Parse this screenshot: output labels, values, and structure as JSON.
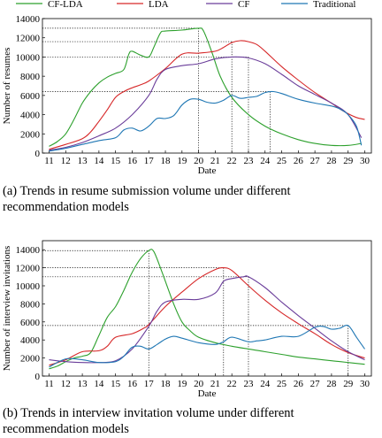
{
  "legend": {
    "entries": [
      {
        "name": "CF-LDA",
        "color": "#2ca02c"
      },
      {
        "name": "LDA",
        "color": "#d62728"
      },
      {
        "name": "CF",
        "color": "#6a3d9a"
      },
      {
        "name": "Traditional",
        "color": "#1f77b4"
      }
    ]
  },
  "captions": {
    "a": "(a) Trends in resume submission volume under different recommendation models",
    "b": "(b) Trends in interview invitation volume under different recommendation models"
  },
  "chart_data": [
    {
      "type": "line",
      "title": "",
      "xlabel": "Date",
      "ylabel": "Number of resumes",
      "xlim": [
        10.6,
        30.4
      ],
      "ylim": [
        0,
        14000
      ],
      "xticks": [
        11,
        12,
        13,
        14,
        15,
        16,
        17,
        18,
        19,
        20,
        21,
        22,
        23,
        24,
        25,
        26,
        27,
        28,
        29,
        30
      ],
      "yticks": [
        0,
        2000,
        4000,
        6000,
        8000,
        10000,
        12000,
        14000
      ],
      "grid": false,
      "legend": "top",
      "series": [
        {
          "name": "CF-LDA",
          "color": "#2ca02c",
          "points": [
            [
              11,
              700
            ],
            [
              11.5,
              1200
            ],
            [
              12,
              2000
            ],
            [
              12.5,
              3500
            ],
            [
              13,
              5200
            ],
            [
              13.5,
              6400
            ],
            [
              14,
              7300
            ],
            [
              14.5,
              7900
            ],
            [
              15,
              8300
            ],
            [
              15.5,
              8700
            ],
            [
              15.8,
              10300
            ],
            [
              16,
              10600
            ],
            [
              16.5,
              10200
            ],
            [
              17,
              10000
            ],
            [
              17.3,
              11000
            ],
            [
              17.7,
              12500
            ],
            [
              18,
              12700
            ],
            [
              19,
              12800
            ],
            [
              20,
              13000
            ],
            [
              20.3,
              12700
            ],
            [
              20.8,
              10500
            ],
            [
              21.3,
              8000
            ],
            [
              22,
              5800
            ],
            [
              23,
              4000
            ],
            [
              24,
              2800
            ],
            [
              25,
              2000
            ],
            [
              26,
              1400
            ],
            [
              27,
              1000
            ],
            [
              28,
              800
            ],
            [
              29,
              800
            ],
            [
              29.8,
              1000
            ]
          ]
        },
        {
          "name": "LDA",
          "color": "#d62728",
          "points": [
            [
              11,
              400
            ],
            [
              12,
              900
            ],
            [
              13,
              1500
            ],
            [
              13.5,
              2200
            ],
            [
              14,
              3300
            ],
            [
              14.5,
              4500
            ],
            [
              15,
              5800
            ],
            [
              15.5,
              6400
            ],
            [
              16,
              6800
            ],
            [
              16.5,
              7100
            ],
            [
              17,
              7500
            ],
            [
              18,
              8800
            ],
            [
              19,
              10300
            ],
            [
              20,
              10400
            ],
            [
              21,
              10600
            ],
            [
              21.5,
              11000
            ],
            [
              22,
              11500
            ],
            [
              22.5,
              11700
            ],
            [
              23,
              11600
            ],
            [
              23.5,
              11300
            ],
            [
              24,
              10600
            ],
            [
              25,
              9000
            ],
            [
              26,
              7600
            ],
            [
              27,
              6300
            ],
            [
              28,
              5200
            ],
            [
              28.5,
              4600
            ],
            [
              29,
              4100
            ],
            [
              29.5,
              3700
            ],
            [
              30,
              3500
            ]
          ]
        },
        {
          "name": "CF",
          "color": "#6a3d9a",
          "points": [
            [
              11,
              300
            ],
            [
              12,
              600
            ],
            [
              13,
              1100
            ],
            [
              14,
              1800
            ],
            [
              15,
              2600
            ],
            [
              16,
              4000
            ],
            [
              17,
              6000
            ],
            [
              17.5,
              7700
            ],
            [
              18,
              8700
            ],
            [
              19,
              9100
            ],
            [
              20,
              9300
            ],
            [
              21,
              9800
            ],
            [
              22,
              10000
            ],
            [
              23,
              9900
            ],
            [
              24,
              9300
            ],
            [
              25,
              8200
            ],
            [
              26,
              7000
            ],
            [
              27,
              6100
            ],
            [
              28,
              5200
            ],
            [
              29,
              4000
            ],
            [
              29.8,
              1600
            ]
          ]
        },
        {
          "name": "Traditional",
          "color": "#1f77b4",
          "points": [
            [
              11,
              200
            ],
            [
              12,
              500
            ],
            [
              13,
              900
            ],
            [
              14,
              1300
            ],
            [
              15,
              1600
            ],
            [
              15.5,
              2400
            ],
            [
              16,
              2600
            ],
            [
              16.5,
              2300
            ],
            [
              17,
              2800
            ],
            [
              17.5,
              3600
            ],
            [
              18,
              3600
            ],
            [
              18.5,
              3900
            ],
            [
              19,
              5000
            ],
            [
              19.5,
              5600
            ],
            [
              20,
              5600
            ],
            [
              20.5,
              5300
            ],
            [
              21,
              5200
            ],
            [
              21.5,
              5500
            ],
            [
              22,
              6000
            ],
            [
              22.5,
              5700
            ],
            [
              23,
              5800
            ],
            [
              23.5,
              5900
            ],
            [
              24,
              6300
            ],
            [
              24.5,
              6400
            ],
            [
              25,
              6200
            ],
            [
              26,
              5600
            ],
            [
              27,
              5200
            ],
            [
              28,
              4900
            ],
            [
              28.5,
              4600
            ],
            [
              29,
              4000
            ],
            [
              29.5,
              2800
            ],
            [
              29.8,
              800
            ]
          ]
        }
      ],
      "reference_lines": {
        "horizontal": [
          13000,
          11600,
          10000,
          6400
        ],
        "vertical": [
          20,
          22,
          23,
          24.3
        ]
      }
    },
    {
      "type": "line",
      "title": "",
      "xlabel": "Date",
      "ylabel": "Number of interview invitations",
      "xlim": [
        10.6,
        30.4
      ],
      "ylim": [
        0,
        15000
      ],
      "xticks": [
        11,
        12,
        13,
        14,
        15,
        16,
        17,
        18,
        19,
        20,
        21,
        22,
        23,
        24,
        25,
        26,
        27,
        28,
        29,
        30
      ],
      "yticks": [
        0,
        2000,
        4000,
        6000,
        8000,
        10000,
        12000,
        14000
      ],
      "grid": false,
      "legend": "none",
      "series": [
        {
          "name": "CF-LDA",
          "color": "#2ca02c",
          "points": [
            [
              11,
              800
            ],
            [
              11.5,
              1100
            ],
            [
              12,
              1600
            ],
            [
              12.5,
              2000
            ],
            [
              13,
              2200
            ],
            [
              13.5,
              2600
            ],
            [
              14,
              4500
            ],
            [
              14.5,
              6500
            ],
            [
              15,
              7700
            ],
            [
              15.5,
              9500
            ],
            [
              16,
              11500
            ],
            [
              16.5,
              13000
            ],
            [
              17,
              13900
            ],
            [
              17.3,
              13800
            ],
            [
              17.8,
              11500
            ],
            [
              18.5,
              8000
            ],
            [
              19,
              6000
            ],
            [
              19.5,
              5000
            ],
            [
              20,
              4300
            ],
            [
              21,
              3700
            ],
            [
              22,
              3300
            ],
            [
              23,
              3000
            ],
            [
              24,
              2700
            ],
            [
              25,
              2400
            ],
            [
              26,
              2100
            ],
            [
              27,
              1900
            ],
            [
              28,
              1700
            ],
            [
              29,
              1500
            ],
            [
              30,
              1300
            ]
          ]
        },
        {
          "name": "LDA",
          "color": "#d62728",
          "points": [
            [
              11,
              1200
            ],
            [
              12,
              1800
            ],
            [
              13,
              2700
            ],
            [
              14,
              2800
            ],
            [
              14.5,
              3300
            ],
            [
              15,
              4300
            ],
            [
              16,
              4700
            ],
            [
              16.7,
              5300
            ],
            [
              17,
              5700
            ],
            [
              18,
              7700
            ],
            [
              19,
              9300
            ],
            [
              20,
              10800
            ],
            [
              21,
              11800
            ],
            [
              21.5,
              12000
            ],
            [
              22,
              11700
            ],
            [
              23,
              10000
            ],
            [
              24,
              8400
            ],
            [
              25,
              7000
            ],
            [
              26,
              5800
            ],
            [
              27,
              4700
            ],
            [
              28,
              3500
            ],
            [
              29,
              2600
            ],
            [
              30,
              2000
            ]
          ]
        },
        {
          "name": "CF",
          "color": "#6a3d9a",
          "points": [
            [
              11,
              1800
            ],
            [
              12,
              1600
            ],
            [
              13,
              1500
            ],
            [
              14,
              1500
            ],
            [
              15,
              1700
            ],
            [
              16,
              3000
            ],
            [
              17,
              5500
            ],
            [
              17.5,
              7200
            ],
            [
              18,
              8200
            ],
            [
              19,
              8500
            ],
            [
              20,
              8500
            ],
            [
              21,
              9200
            ],
            [
              21.5,
              10500
            ],
            [
              22,
              10800
            ],
            [
              22.7,
              11000
            ],
            [
              23,
              11000
            ],
            [
              24,
              9800
            ],
            [
              25,
              8200
            ],
            [
              26,
              6700
            ],
            [
              27,
              5300
            ],
            [
              28,
              3900
            ],
            [
              29,
              2700
            ],
            [
              30,
              1800
            ]
          ]
        },
        {
          "name": "Traditional",
          "color": "#1f77b4",
          "points": [
            [
              11,
              1000
            ],
            [
              12,
              1900
            ],
            [
              13,
              1800
            ],
            [
              14,
              1500
            ],
            [
              15,
              1600
            ],
            [
              15.5,
              2200
            ],
            [
              16,
              3200
            ],
            [
              16.5,
              3300
            ],
            [
              17,
              3000
            ],
            [
              17.5,
              3500
            ],
            [
              18,
              4100
            ],
            [
              18.5,
              4400
            ],
            [
              19,
              4200
            ],
            [
              20,
              3700
            ],
            [
              21,
              3500
            ],
            [
              21.5,
              3800
            ],
            [
              22,
              4300
            ],
            [
              23,
              3800
            ],
            [
              23.5,
              3900
            ],
            [
              24,
              4000
            ],
            [
              25,
              4400
            ],
            [
              26,
              4400
            ],
            [
              27,
              5400
            ],
            [
              27.5,
              5500
            ],
            [
              28,
              5200
            ],
            [
              28.5,
              5300
            ],
            [
              29,
              5600
            ],
            [
              29.5,
              4300
            ],
            [
              30,
              3000
            ]
          ]
        }
      ],
      "reference_lines": {
        "horizontal": [
          13900,
          12000,
          11000,
          5600
        ],
        "vertical": [
          17,
          21.5,
          23,
          29
        ]
      }
    }
  ]
}
